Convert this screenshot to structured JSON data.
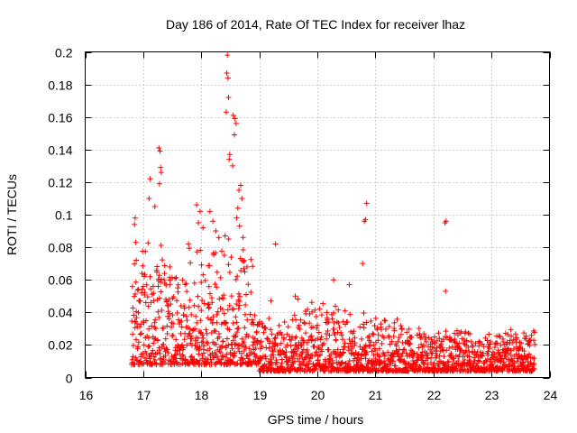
{
  "chart_data": {
    "type": "scatter",
    "title": "Day 186 of 2014, Rate Of TEC Index for receiver lhaz",
    "xlabel": "GPS time / hours",
    "ylabel": "ROTI / TECUs",
    "xlim": [
      16,
      24
    ],
    "ylim": [
      0,
      0.2
    ],
    "xticks": [
      "16",
      "17",
      "18",
      "19",
      "20",
      "21",
      "22",
      "23",
      "24"
    ],
    "yticks": [
      "0",
      "0.02",
      "0.04",
      "0.06",
      "0.08",
      "0.1",
      "0.12",
      "0.14",
      "0.16",
      "0.18",
      "0.2"
    ],
    "grid": true,
    "marker": "+",
    "color": "#ff0000",
    "generation": {
      "description": "dense point cloud approximated from the figure",
      "x_start": 16.8,
      "x_end": 23.75,
      "x_step": 0.0035,
      "seed": 20140705
    },
    "points": [
      [
        16.85,
        0.094
      ],
      [
        16.86,
        0.098
      ],
      [
        16.87,
        0.083
      ],
      [
        16.88,
        0.072
      ],
      [
        17.27,
        0.141
      ],
      [
        17.29,
        0.139
      ],
      [
        17.3,
        0.129
      ],
      [
        17.31,
        0.126
      ],
      [
        17.28,
        0.119
      ],
      [
        17.12,
        0.122
      ],
      [
        17.1,
        0.11
      ],
      [
        17.2,
        0.105
      ],
      [
        17.92,
        0.106
      ],
      [
        17.98,
        0.102
      ],
      [
        17.95,
        0.095
      ],
      [
        18.03,
        0.092
      ],
      [
        18.15,
        0.102
      ],
      [
        18.2,
        0.096
      ],
      [
        18.25,
        0.09
      ],
      [
        18.45,
        0.198
      ],
      [
        18.44,
        0.187
      ],
      [
        18.46,
        0.184
      ],
      [
        18.47,
        0.172
      ],
      [
        18.43,
        0.163
      ],
      [
        18.55,
        0.161
      ],
      [
        18.58,
        0.159
      ],
      [
        18.6,
        0.156
      ],
      [
        18.57,
        0.149
      ],
      [
        18.49,
        0.137
      ],
      [
        18.48,
        0.134
      ],
      [
        18.54,
        0.13
      ],
      [
        18.68,
        0.118
      ],
      [
        18.65,
        0.115
      ],
      [
        18.7,
        0.11
      ],
      [
        18.63,
        0.104
      ],
      [
        18.61,
        0.098
      ],
      [
        18.66,
        0.093
      ],
      [
        18.72,
        0.086
      ],
      [
        19.28,
        0.082
      ],
      [
        20.85,
        0.107
      ],
      [
        20.83,
        0.097
      ],
      [
        20.81,
        0.096
      ],
      [
        20.78,
        0.07
      ],
      [
        22.22,
        0.096
      ],
      [
        22.2,
        0.095
      ],
      [
        22.21,
        0.053
      ],
      [
        20.28,
        0.06
      ],
      [
        20.55,
        0.057
      ],
      [
        19.62,
        0.05
      ],
      [
        19.2,
        0.047
      ]
    ]
  }
}
